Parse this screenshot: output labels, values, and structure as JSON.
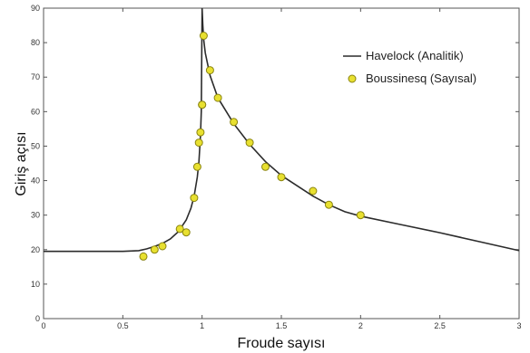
{
  "chart_data": {
    "type": "line",
    "xlabel": "Froude sayısı",
    "ylabel": "Giriş açısı",
    "xlim": [
      0,
      3
    ],
    "ylim": [
      0,
      90
    ],
    "xticks": [
      "0",
      "0.5",
      "1",
      "1.5",
      "2",
      "2.5",
      "3"
    ],
    "yticks": [
      "0",
      "10",
      "20",
      "30",
      "40",
      "50",
      "60",
      "70",
      "80",
      "90"
    ],
    "grid": false,
    "legend_position": "top-right",
    "series": [
      {
        "name": "Havelock (Analitik)",
        "kind": "line",
        "color": "#2b2b2b",
        "x": [
          0,
          0.3,
          0.5,
          0.6,
          0.65,
          0.7,
          0.75,
          0.8,
          0.85,
          0.9,
          0.93,
          0.95,
          0.97,
          0.98,
          0.99,
          0.995,
          1.0
        ],
        "y": [
          19.5,
          19.5,
          19.5,
          19.7,
          20.2,
          20.9,
          21.8,
          23.1,
          25.2,
          28.6,
          32.0,
          35.5,
          41.0,
          45.5,
          53.0,
          60.0,
          90.0
        ],
        "x2": [
          1.0,
          1.005,
          1.01,
          1.02,
          1.05,
          1.1,
          1.2,
          1.3,
          1.4,
          1.5,
          1.6,
          1.7,
          1.8,
          1.9,
          2.0,
          2.25,
          2.5,
          2.75,
          3.0
        ],
        "y2": [
          90.0,
          85.0,
          81.0,
          77.0,
          70.5,
          64.0,
          56.5,
          50.5,
          45.5,
          41.5,
          38.5,
          35.5,
          33.0,
          31.0,
          29.7,
          27.3,
          24.9,
          22.3,
          19.7
        ]
      },
      {
        "name": "Boussinesq (Sayısal)",
        "kind": "scatter",
        "color": "#e8e030",
        "x": [
          0.63,
          0.7,
          0.75,
          0.86,
          0.9,
          0.95,
          0.97,
          0.98,
          0.99,
          1.0,
          1.0,
          1.01,
          1.05,
          1.1,
          1.2,
          1.3,
          1.4,
          1.5,
          1.7,
          1.8,
          2.0
        ],
        "y": [
          18,
          20,
          21,
          26,
          25,
          35,
          44,
          51,
          54,
          62,
          62,
          82,
          72,
          64,
          57,
          51,
          44,
          41,
          37,
          33,
          30
        ]
      }
    ]
  }
}
